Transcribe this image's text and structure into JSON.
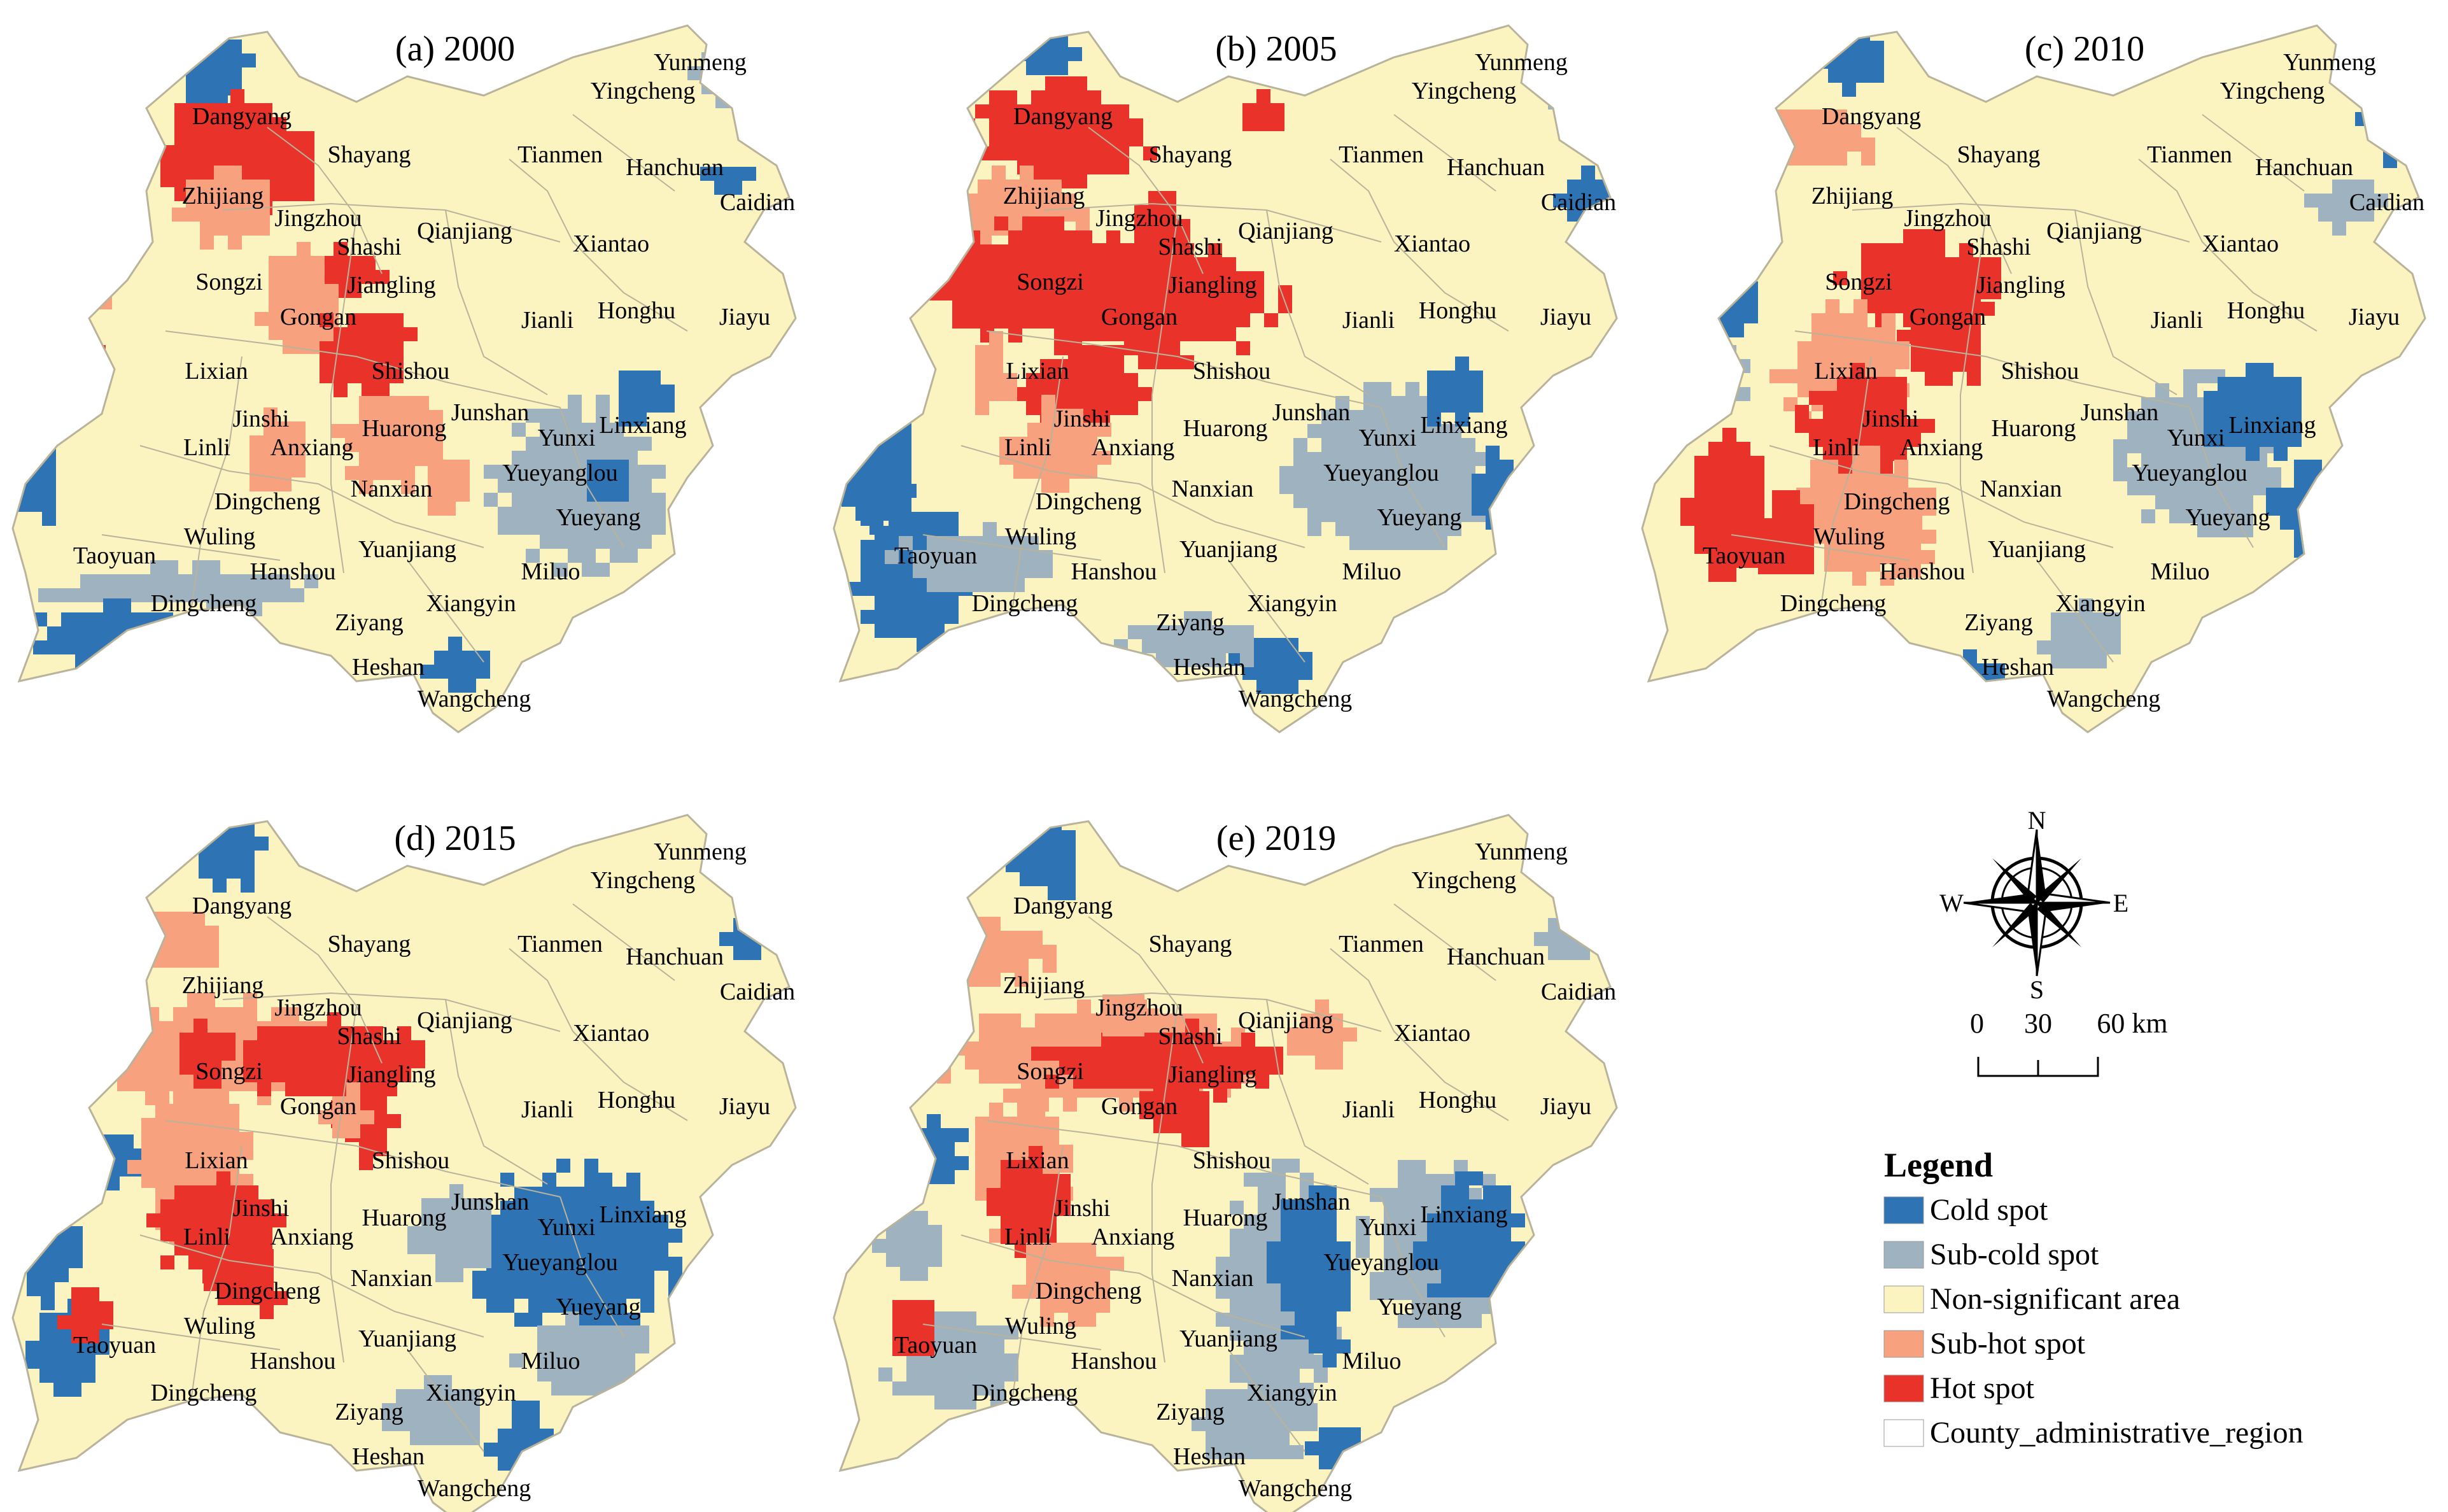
{
  "colors": {
    "cold_spot": "#2e74b5",
    "sub_cold_spot": "#9fb2c0",
    "non_significant": "#fbf4c0",
    "sub_hot_spot": "#f7a17f",
    "hot_spot": "#e8322a",
    "boundary": "#b8b39a"
  },
  "panels": [
    {
      "title": "(a) 2000",
      "labels": [
        "Yunmeng",
        "Dangyang",
        "Yingcheng",
        "Shayang",
        "Tianmen",
        "Hanchuan",
        "Caidian",
        "Zhijiang",
        "Jingzhou",
        "Qianjiang",
        "Shashi",
        "Xiantao",
        "Songzi",
        "Jiangling",
        "Gongan",
        "Jianli",
        "Honghu",
        "Jiayu",
        "Lixian",
        "Shishou",
        "Jinshi",
        "Huarong",
        "Junshan",
        "Linli",
        "Anxiang",
        "Yunxi",
        "Linxiang",
        "Yueyanglou",
        "Dingcheng",
        "Nanxian",
        "Yueyang",
        "Wuling",
        "Taoyuan",
        "Yuanjiang",
        "Hanshou",
        "Miluo",
        "Dingcheng",
        "Xiangyin",
        "Ziyang",
        "Heshan",
        "Wangcheng"
      ],
      "hot": [
        [
          230,
          140,
          260,
          200,
          "h"
        ],
        [
          95,
          190,
          80,
          120,
          "s"
        ],
        [
          300,
          200,
          140,
          80,
          "h"
        ],
        [
          270,
          260,
          150,
          120,
          "s"
        ],
        [
          100,
          520,
          60,
          60,
          "h"
        ],
        [
          480,
          380,
          120,
          80,
          "h"
        ],
        [
          400,
          380,
          130,
          180,
          "s"
        ],
        [
          480,
          470,
          170,
          140,
          "h"
        ],
        [
          520,
          600,
          160,
          160,
          "s"
        ],
        [
          110,
          420,
          50,
          60,
          "s"
        ],
        [
          370,
          640,
          100,
          120,
          "s"
        ],
        [
          650,
          700,
          80,
          100,
          "s"
        ]
      ],
      "cold": [
        [
          270,
          40,
          120,
          130,
          "c"
        ],
        [
          500,
          40,
          80,
          90,
          "s"
        ],
        [
          1080,
          60,
          100,
          100,
          "s"
        ],
        [
          1100,
          240,
          80,
          60,
          "c"
        ],
        [
          20,
          500,
          80,
          120,
          "s"
        ],
        [
          0,
          650,
          90,
          170,
          "c"
        ],
        [
          60,
          880,
          440,
          70,
          "s"
        ],
        [
          30,
          940,
          250,
          90,
          "c"
        ],
        [
          760,
          620,
          280,
          270,
          "s"
        ],
        [
          950,
          560,
          90,
          100,
          "c"
        ],
        [
          900,
          700,
          80,
          80,
          "c"
        ],
        [
          660,
          1000,
          110,
          80,
          "c"
        ]
      ]
    },
    {
      "title": "(b) 2005",
      "labels": [
        "Yunmeng",
        "Dangyang",
        "Yingcheng",
        "Shayang",
        "Tianmen",
        "Hanchuan",
        "Caidian",
        "Zhijiang",
        "Jingzhou",
        "Qianjiang",
        "Shashi",
        "Xiantao",
        "Songzi",
        "Jiangling",
        "Gongan",
        "Jianli",
        "Honghu",
        "Jiayu",
        "Lixian",
        "Shishou",
        "Jinshi",
        "Huarong",
        "Junshan",
        "Linli",
        "Anxiang",
        "Yunxi",
        "Linxiang",
        "Yueyanglou",
        "Dingcheng",
        "Nanxian",
        "Yueyang",
        "Wuling",
        "Taoyuan",
        "Yuanjiang",
        "Hanshou",
        "Miluo",
        "Dingcheng",
        "Xiangyin",
        "Ziyang",
        "Heshan",
        "Wangcheng"
      ],
      "hot": [
        [
          220,
          120,
          300,
          160,
          "h"
        ],
        [
          180,
          260,
          230,
          120,
          "s"
        ],
        [
          140,
          340,
          360,
          180,
          "h"
        ],
        [
          300,
          360,
          420,
          200,
          "h"
        ],
        [
          470,
          300,
          110,
          100,
          "h"
        ],
        [
          300,
          520,
          200,
          160,
          "h"
        ],
        [
          280,
          620,
          160,
          140,
          "s"
        ],
        [
          220,
          520,
          70,
          120,
          "s"
        ],
        [
          90,
          410,
          60,
          60,
          "s"
        ],
        [
          100,
          550,
          60,
          60,
          "s"
        ],
        [
          640,
          140,
          80,
          60,
          "h"
        ]
      ],
      "cold": [
        [
          300,
          30,
          100,
          80,
          "c"
        ],
        [
          520,
          30,
          80,
          90,
          "s"
        ],
        [
          1120,
          40,
          70,
          120,
          "s"
        ],
        [
          1150,
          260,
          80,
          70,
          "c"
        ],
        [
          10,
          620,
          130,
          220,
          "c"
        ],
        [
          40,
          760,
          180,
          260,
          "c"
        ],
        [
          100,
          820,
          260,
          110,
          "s"
        ],
        [
          720,
          600,
          330,
          260,
          "s"
        ],
        [
          930,
          560,
          120,
          100,
          "c"
        ],
        [
          1000,
          700,
          120,
          130,
          "c"
        ],
        [
          640,
          980,
          120,
          100,
          "c"
        ],
        [
          460,
          960,
          220,
          80,
          "s"
        ]
      ]
    },
    {
      "title": "(c) 2010",
      "labels": [
        "Yunmeng",
        "Dangyang",
        "Yingcheng",
        "Shayang",
        "Tianmen",
        "Hanchuan",
        "Caidian",
        "Zhijiang",
        "Jingzhou",
        "Qianjiang",
        "Shashi",
        "Xiantao",
        "Songzi",
        "Jiangling",
        "Gongan",
        "Jianli",
        "Honghu",
        "Jiayu",
        "Lixian",
        "Shishou",
        "Jinshi",
        "Huarong",
        "Junshan",
        "Linli",
        "Anxiang",
        "Yunxi",
        "Linxiang",
        "Yueyanglou",
        "Dingcheng",
        "Nanxian",
        "Yueyang",
        "Wuling",
        "Taoyuan",
        "Yuanjiang",
        "Hanshou",
        "Miluo",
        "Dingcheng",
        "Xiangyin",
        "Ziyang",
        "Heshan",
        "Wangcheng"
      ],
      "hot": [
        [
          210,
          150,
          170,
          110,
          "s"
        ],
        [
          320,
          360,
          250,
          150,
          "h"
        ],
        [
          420,
          430,
          140,
          170,
          "h"
        ],
        [
          220,
          470,
          220,
          200,
          "s"
        ],
        [
          260,
          570,
          200,
          180,
          "h"
        ],
        [
          80,
          650,
          130,
          260,
          "h"
        ],
        [
          240,
          700,
          230,
          200,
          "s"
        ],
        [
          180,
          770,
          110,
          120,
          "h"
        ],
        [
          370,
          820,
          100,
          80,
          "s"
        ]
      ],
      "cold": [
        [
          290,
          20,
          110,
          120,
          "c"
        ],
        [
          1140,
          110,
          100,
          140,
          "c"
        ],
        [
          1060,
          260,
          120,
          90,
          "s"
        ],
        [
          70,
          420,
          130,
          100,
          "c"
        ],
        [
          80,
          520,
          90,
          130,
          "s"
        ],
        [
          760,
          580,
          260,
          260,
          "s"
        ],
        [
          880,
          570,
          180,
          140,
          "c"
        ],
        [
          1000,
          700,
          130,
          160,
          "c"
        ],
        [
          480,
          1020,
          120,
          100,
          "c"
        ],
        [
          640,
          940,
          130,
          110,
          "s"
        ]
      ]
    },
    {
      "title": "(d) 2015",
      "labels": [
        "Yunmeng",
        "Dangyang",
        "Yingcheng",
        "Shayang",
        "Tianmen",
        "Hanchuan",
        "Caidian",
        "Zhijiang",
        "Jingzhou",
        "Qianjiang",
        "Shashi",
        "Xiantao",
        "Songzi",
        "Jiangling",
        "Gongan",
        "Jianli",
        "Honghu",
        "Jiayu",
        "Lixian",
        "Shishou",
        "Jinshi",
        "Huarong",
        "Junshan",
        "Linli",
        "Anxiang",
        "Yunxi",
        "Linxiang",
        "Yueyanglou",
        "Dingcheng",
        "Nanxian",
        "Yueyang",
        "Wuling",
        "Taoyuan",
        "Yuanjiang",
        "Hanshou",
        "Miluo",
        "Dingcheng",
        "Xiangyin",
        "Ziyang",
        "Heshan",
        "Wangcheng"
      ],
      "hot": [
        [
          190,
          170,
          150,
          110,
          "s"
        ],
        [
          140,
          320,
          380,
          170,
          "s"
        ],
        [
          360,
          350,
          300,
          130,
          "h"
        ],
        [
          520,
          400,
          90,
          180,
          "h"
        ],
        [
          260,
          360,
          100,
          90,
          "h"
        ],
        [
          200,
          450,
          180,
          260,
          "s"
        ],
        [
          230,
          600,
          200,
          160,
          "h"
        ],
        [
          320,
          700,
          120,
          120,
          "h"
        ],
        [
          90,
          760,
          80,
          110,
          "h"
        ],
        [
          500,
          460,
          70,
          80,
          "s"
        ]
      ],
      "cold": [
        [
          290,
          30,
          120,
          120,
          "c"
        ],
        [
          1130,
          180,
          90,
          80,
          "c"
        ],
        [
          100,
          520,
          130,
          90,
          "c"
        ],
        [
          20,
          620,
          90,
          180,
          "c"
        ],
        [
          40,
          800,
          120,
          150,
          "c"
        ],
        [
          720,
          580,
          350,
          260,
          "c"
        ],
        [
          640,
          620,
          130,
          140,
          "s"
        ],
        [
          800,
          820,
          220,
          130,
          "s"
        ],
        [
          600,
          920,
          150,
          110,
          "s"
        ],
        [
          760,
          960,
          110,
          120,
          "c"
        ]
      ]
    },
    {
      "title": "(e) 2019",
      "labels": [
        "Yunmeng",
        "Dangyang",
        "Yingcheng",
        "Shayang",
        "Tianmen",
        "Hanchuan",
        "Caidian",
        "Zhijiang",
        "Jingzhou",
        "Qianjiang",
        "Shashi",
        "Xiantao",
        "Songzi",
        "Jiangling",
        "Gongan",
        "Jianli",
        "Honghu",
        "Jiayu",
        "Lixian",
        "Shishou",
        "Jinshi",
        "Huarong",
        "Junshan",
        "Linli",
        "Anxiang",
        "Yunxi",
        "Linxiang",
        "Yueyanglou",
        "Dingcheng",
        "Nanxian",
        "Yueyang",
        "Wuling",
        "Taoyuan",
        "Yuanjiang",
        "Hanshou",
        "Miluo",
        "Dingcheng",
        "Xiangyin",
        "Ziyang",
        "Heshan",
        "Wangcheng"
      ],
      "hot": [
        [
          150,
          200,
          200,
          100,
          "s"
        ],
        [
          160,
          330,
          520,
          160,
          "s"
        ],
        [
          330,
          360,
          380,
          120,
          "h"
        ],
        [
          500,
          430,
          110,
          120,
          "h"
        ],
        [
          220,
          470,
          160,
          230,
          "s"
        ],
        [
          260,
          560,
          120,
          170,
          "h"
        ],
        [
          300,
          690,
          160,
          140,
          "s"
        ],
        [
          90,
          780,
          80,
          100,
          "h"
        ],
        [
          710,
          330,
          120,
          100,
          "s"
        ],
        [
          420,
          300,
          100,
          80,
          "s"
        ]
      ],
      "cold": [
        [
          290,
          20,
          120,
          140,
          "c"
        ],
        [
          1120,
          180,
          80,
          90,
          "s"
        ],
        [
          100,
          510,
          120,
          100,
          "c"
        ],
        [
          80,
          640,
          110,
          130,
          "s"
        ],
        [
          90,
          820,
          230,
          150,
          "s"
        ],
        [
          620,
          580,
          180,
          400,
          "s"
        ],
        [
          700,
          600,
          130,
          300,
          "c"
        ],
        [
          840,
          560,
          240,
          280,
          "s"
        ],
        [
          930,
          600,
          160,
          220,
          "c"
        ],
        [
          560,
          920,
          200,
          130,
          "s"
        ],
        [
          760,
          980,
          90,
          90,
          "c"
        ]
      ]
    }
  ],
  "compass": {
    "north": "N",
    "south": "S",
    "east": "E",
    "west": "W"
  },
  "scale_bar": {
    "ticks": [
      "0",
      "30",
      "60 km"
    ]
  },
  "legend": {
    "title": "Legend",
    "items": [
      {
        "label": "Cold spot",
        "color": "#2e74b5"
      },
      {
        "label": "Sub-cold spot",
        "color": "#9fb2c0"
      },
      {
        "label": "Non-significant area",
        "color": "#fbf4c0"
      },
      {
        "label": "Sub-hot spot",
        "color": "#f7a17f"
      },
      {
        "label": "Hot spot",
        "color": "#e8322a"
      },
      {
        "label": "County_administrative_region",
        "color": "#ffffff"
      }
    ]
  }
}
